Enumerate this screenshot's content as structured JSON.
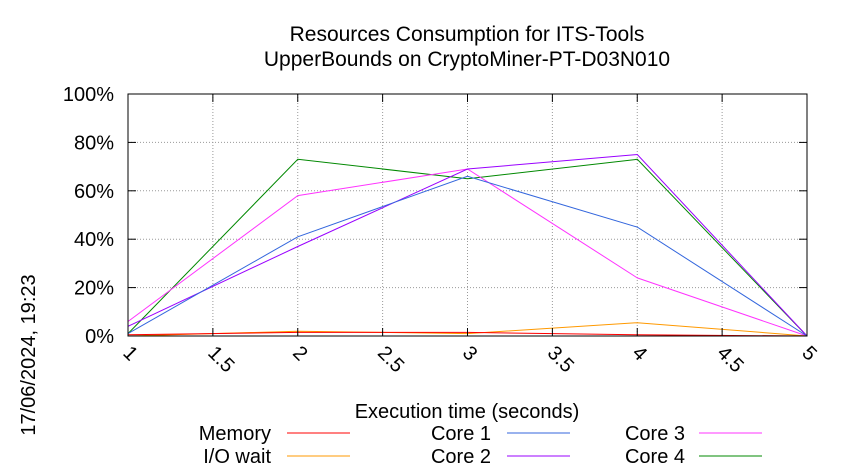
{
  "timestamp": "17/06/2024, 19:23",
  "chart_data": {
    "type": "line",
    "title": "Resources Consumption for ITS-Tools",
    "subtitle": "UpperBounds on CryptoMiner-PT-D03N010",
    "xlabel": "Execution time (seconds)",
    "ylabel": "",
    "xlim": [
      1,
      5
    ],
    "ylim": [
      0,
      100
    ],
    "x_ticks": [
      "1",
      "1.5",
      "2",
      "2.5",
      "3",
      "3.5",
      "4",
      "4.5",
      "5"
    ],
    "y_ticks": [
      "0%",
      "20%",
      "40%",
      "60%",
      "80%",
      "100%"
    ],
    "grid": true,
    "legend_position": "bottom",
    "x": [
      1,
      2,
      3,
      4,
      5
    ],
    "series": [
      {
        "name": "Memory",
        "color": "#ff0000",
        "values": [
          0.5,
          1.5,
          1.5,
          0.5,
          0
        ]
      },
      {
        "name": "I/O wait",
        "color": "#ff9900",
        "values": [
          0,
          2,
          1,
          5.5,
          0
        ]
      },
      {
        "name": "Core 1",
        "color": "#3366dd",
        "values": [
          1,
          41,
          66,
          45,
          0
        ]
      },
      {
        "name": "Core 2",
        "color": "#9900ff",
        "values": [
          4,
          37,
          69,
          75,
          0
        ]
      },
      {
        "name": "Core 3",
        "color": "#ff33ff",
        "values": [
          6,
          58,
          69,
          24,
          0
        ]
      },
      {
        "name": "Core 4",
        "color": "#008800",
        "values": [
          1,
          73,
          65,
          73,
          0
        ]
      }
    ]
  }
}
